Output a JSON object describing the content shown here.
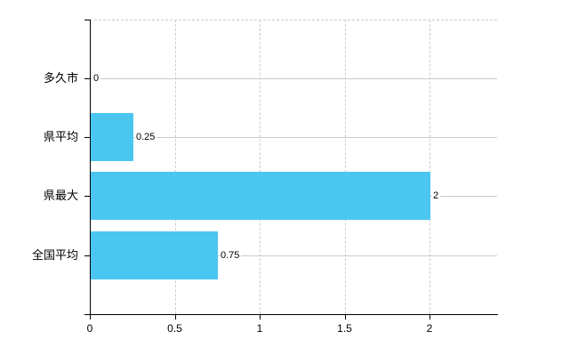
{
  "chart_data": {
    "type": "bar",
    "orientation": "horizontal",
    "title": "",
    "xlabel": "",
    "ylabel": "",
    "categories": [
      "多久市",
      "県平均",
      "県最大",
      "全国平均"
    ],
    "values": [
      0,
      0.25,
      2,
      0.75
    ],
    "value_labels": [
      "0",
      "0.25",
      "2",
      "0.75"
    ],
    "x_tick_labels": [
      "0",
      "0.5",
      "1",
      "1.5",
      "2"
    ],
    "x_tick_values": [
      0,
      0.5,
      1,
      1.5,
      2
    ],
    "xlim": [
      0,
      2.4
    ],
    "grid": true,
    "legend": false,
    "colors": {
      "bar": "#4bc6f1",
      "category_gridline": "#c9cdc9",
      "value_gridline_dashed": "#cccccc",
      "axis": "#000000",
      "text": "#000000",
      "background": "#ffffff"
    }
  }
}
